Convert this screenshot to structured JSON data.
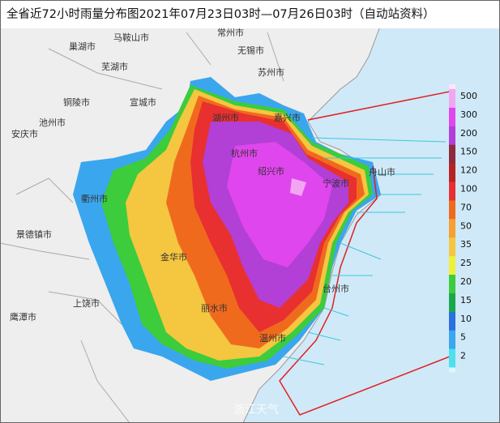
{
  "title": "全省近72小时雨量分布图2021年07月23日03时—07月26日03时（自动站资料）",
  "cities": [
    "巢湖市",
    "马鞍山市",
    "常州市",
    "无锡市",
    "芜湖市",
    "苏州市",
    "铜陵市",
    "宣城市",
    "池州市",
    "安庆市",
    "湖州市",
    "嘉兴市",
    "杭州市",
    "绍兴市",
    "宁波市",
    "舟山市",
    "衢州市",
    "金华市",
    "台州市",
    "景德镇市",
    "上饶市",
    "丽水市",
    "鹰潭市",
    "温州市"
  ],
  "legend": {
    "values": [
      500,
      300,
      200,
      150,
      120,
      100,
      70,
      50,
      35,
      25,
      20,
      15,
      10,
      5,
      2
    ],
    "colors": [
      "#f2a6f2",
      "#e046ee",
      "#b23fd6",
      "#8e2a3c",
      "#b82222",
      "#e83030",
      "#f06a1e",
      "#f5a030",
      "#f5c640",
      "#eef03a",
      "#3ccc3c",
      "#18a84a",
      "#2a70de",
      "#3aa6ee",
      "#4fe0f0"
    ]
  },
  "watermark": "浙江天气"
}
